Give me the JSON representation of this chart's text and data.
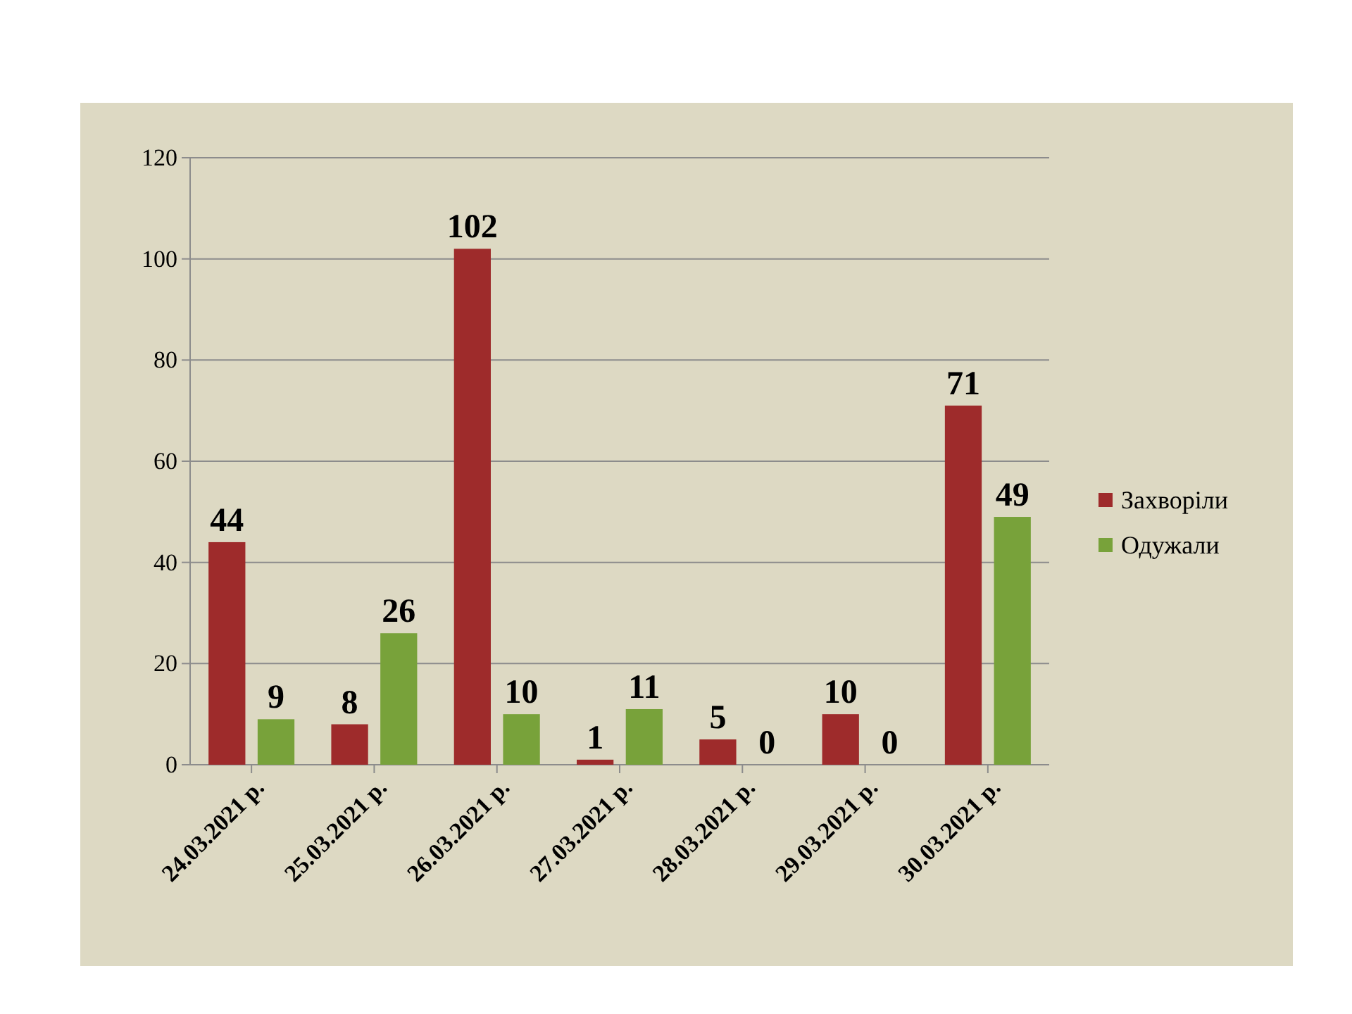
{
  "chart_data": {
    "type": "bar",
    "categories": [
      "24.03.2021 р.",
      "25.03.2021 р.",
      "26.03.2021 р.",
      "27.03.2021 р.",
      "28.03.2021 р.",
      "29.03.2021 р.",
      "30.03.2021 р."
    ],
    "series": [
      {
        "name": "Захворіли",
        "color": "#9e2b2b",
        "values": [
          44,
          8,
          102,
          1,
          5,
          10,
          71
        ]
      },
      {
        "name": "Одужали",
        "color": "#78a23a",
        "values": [
          9,
          26,
          10,
          11,
          0,
          0,
          49
        ]
      }
    ],
    "ylim": [
      0,
      120
    ],
    "yticks": [
      0,
      20,
      40,
      60,
      80,
      100,
      120
    ],
    "grid": "y",
    "legend": "right",
    "data_labels": true
  }
}
